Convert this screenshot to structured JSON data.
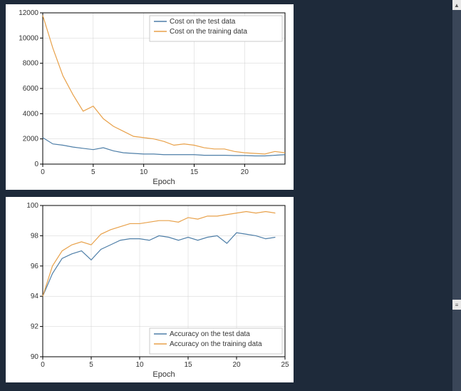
{
  "page_bg": "#1e2a3a",
  "scrollbar": {
    "visible": true,
    "arrow_color": "#555",
    "track_color": "#3a4658"
  },
  "chart_top": {
    "type": "line",
    "panel_bg": "#ffffff",
    "plot_bg": "#ffffff",
    "grid_color": "#d0d0d0",
    "xlabel": "Epoch",
    "xlabel_fontsize": 11,
    "ylabel": "",
    "xlim": [
      0,
      24
    ],
    "xticks": [
      0,
      5,
      10,
      15,
      20
    ],
    "ylim": [
      0,
      12000
    ],
    "yticks": [
      0,
      2000,
      4000,
      6000,
      8000,
      10000,
      12000
    ],
    "legend_position": "upper-right",
    "series": [
      {
        "label": "Cost on the test data",
        "color": "#4f7fa8",
        "line_width": 1.2,
        "x": [
          0,
          1,
          2,
          3,
          4,
          5,
          6,
          7,
          8,
          9,
          10,
          11,
          12,
          13,
          14,
          15,
          16,
          17,
          18,
          19,
          20,
          21,
          22,
          23,
          24
        ],
        "y": [
          2100,
          1600,
          1500,
          1350,
          1250,
          1150,
          1300,
          1050,
          900,
          850,
          800,
          800,
          750,
          750,
          750,
          750,
          700,
          700,
          700,
          680,
          680,
          650,
          650,
          700,
          750
        ]
      },
      {
        "label": "Cost on the training data",
        "color": "#e8a14a",
        "line_width": 1.2,
        "x": [
          0,
          1,
          2,
          3,
          4,
          5,
          6,
          7,
          8,
          9,
          10,
          11,
          12,
          13,
          14,
          15,
          16,
          17,
          18,
          19,
          20,
          21,
          22,
          23,
          24
        ],
        "y": [
          11800,
          9200,
          7000,
          5500,
          4200,
          4600,
          3600,
          3000,
          2600,
          2200,
          2100,
          2000,
          1800,
          1500,
          1600,
          1500,
          1300,
          1200,
          1200,
          1000,
          900,
          850,
          800,
          1000,
          900
        ]
      }
    ]
  },
  "chart_bottom": {
    "type": "line",
    "panel_bg": "#ffffff",
    "plot_bg": "#ffffff",
    "grid_color": "#d0d0d0",
    "xlabel": "Epoch",
    "xlabel_fontsize": 11,
    "ylabel": "",
    "xlim": [
      0,
      25
    ],
    "xticks": [
      0,
      5,
      10,
      15,
      20,
      25
    ],
    "ylim": [
      90,
      100
    ],
    "yticks": [
      90,
      92,
      94,
      96,
      98,
      100
    ],
    "legend_position": "lower-right",
    "series": [
      {
        "label": "Accuracy on the test data",
        "color": "#4f7fa8",
        "line_width": 1.2,
        "x": [
          0,
          1,
          2,
          3,
          4,
          5,
          6,
          7,
          8,
          9,
          10,
          11,
          12,
          13,
          14,
          15,
          16,
          17,
          18,
          19,
          20,
          21,
          22,
          23,
          24
        ],
        "y": [
          94.0,
          95.5,
          96.5,
          96.8,
          97.0,
          96.4,
          97.1,
          97.4,
          97.7,
          97.8,
          97.8,
          97.7,
          98.0,
          97.9,
          97.7,
          97.9,
          97.7,
          97.9,
          98.0,
          97.5,
          98.2,
          98.1,
          98.0,
          97.8,
          97.9
        ]
      },
      {
        "label": "Accuracy on the training data",
        "color": "#e8a14a",
        "line_width": 1.2,
        "x": [
          0,
          1,
          2,
          3,
          4,
          5,
          6,
          7,
          8,
          9,
          10,
          11,
          12,
          13,
          14,
          15,
          16,
          17,
          18,
          19,
          20,
          21,
          22,
          23,
          24
        ],
        "y": [
          94.0,
          96.0,
          97.0,
          97.4,
          97.6,
          97.4,
          98.1,
          98.4,
          98.6,
          98.8,
          98.8,
          98.9,
          99.0,
          99.0,
          98.9,
          99.2,
          99.1,
          99.3,
          99.3,
          99.4,
          99.5,
          99.6,
          99.5,
          99.6,
          99.5
        ]
      }
    ]
  }
}
